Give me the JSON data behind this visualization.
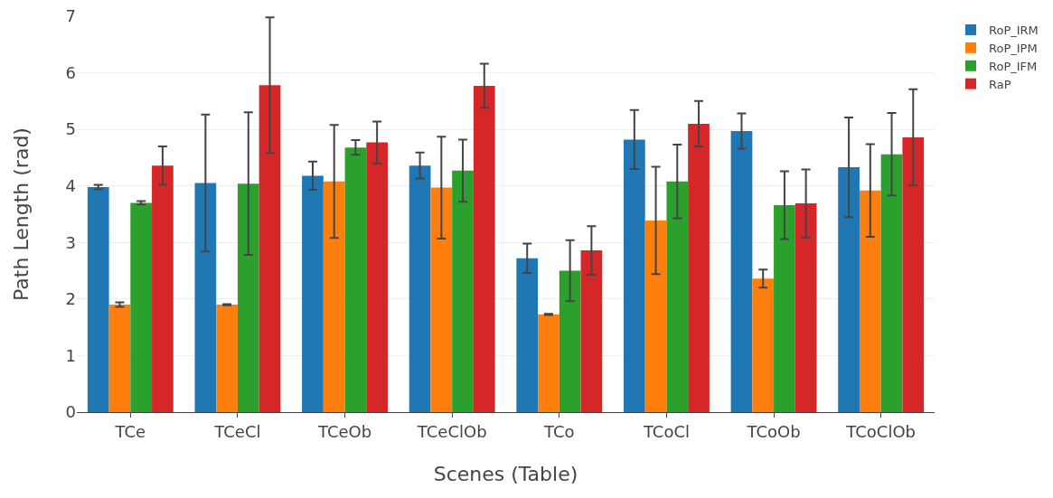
{
  "chart_data": {
    "type": "bar",
    "xlabel": "Scenes (Table)",
    "ylabel": "Path Length (rad)",
    "categories": [
      "TCe",
      "TCeCl",
      "TCeOb",
      "TCeClOb",
      "TCo",
      "TCoCl",
      "TCoOb",
      "TCoClOb"
    ],
    "series": [
      {
        "name": "RoP_IRM",
        "color": "#1f77b4",
        "values": [
          3.98,
          4.05,
          4.18,
          4.36,
          2.72,
          4.82,
          4.97,
          4.33
        ],
        "errors": [
          0.04,
          1.21,
          0.25,
          0.23,
          0.26,
          0.52,
          0.31,
          0.88
        ]
      },
      {
        "name": "RoP_IPM",
        "color": "#ff7f0e",
        "values": [
          1.9,
          1.9,
          4.08,
          3.97,
          1.73,
          3.39,
          2.36,
          3.92
        ],
        "errors": [
          0.04,
          0.01,
          1.0,
          0.9,
          0.01,
          0.95,
          0.16,
          0.82
        ]
      },
      {
        "name": "RoP_IFM",
        "color": "#2ca02c",
        "values": [
          3.7,
          4.04,
          4.68,
          4.27,
          2.5,
          4.08,
          3.66,
          4.56
        ],
        "errors": [
          0.03,
          1.26,
          0.13,
          0.55,
          0.54,
          0.65,
          0.6,
          0.73
        ]
      },
      {
        "name": "RaP",
        "color": "#d62728",
        "values": [
          4.36,
          5.78,
          4.77,
          5.77,
          2.86,
          5.1,
          3.69,
          4.86
        ],
        "errors": [
          0.34,
          1.2,
          0.37,
          0.39,
          0.43,
          0.4,
          0.6,
          0.85
        ]
      }
    ],
    "ylim": [
      0,
      7
    ],
    "yticks": [
      0,
      1,
      2,
      3,
      4,
      5,
      6,
      7
    ],
    "grid": "y",
    "legend": "top right"
  }
}
